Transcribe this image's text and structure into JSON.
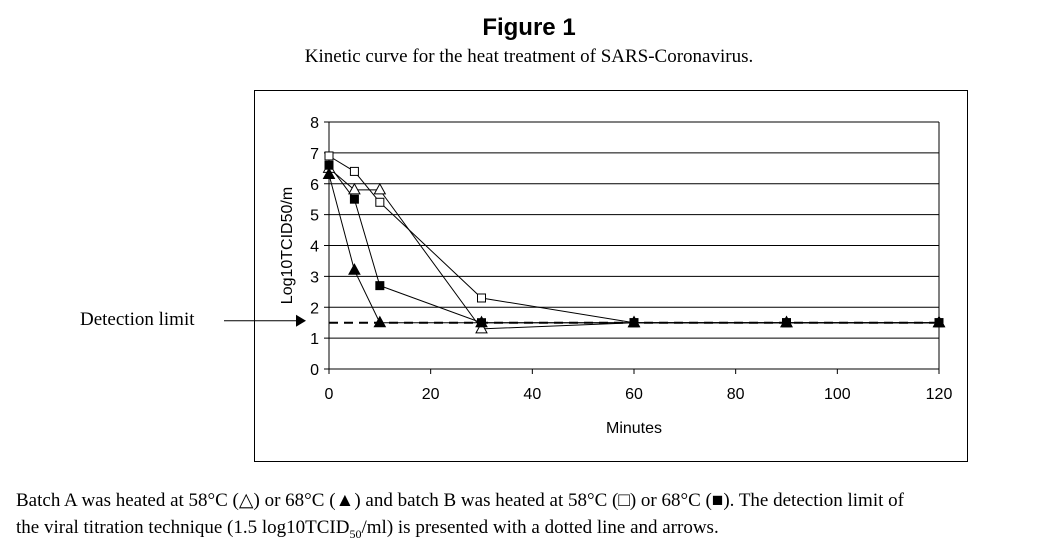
{
  "figure": {
    "title": "Figure 1",
    "subtitle": "Kinetic curve for the heat treatment of SARS-Coronavirus.",
    "detection_label": "Detection limit"
  },
  "caption": {
    "line1_a": "Batch A was heated at 58°C (",
    "line1_b": ") or 68°C (",
    "line1_c": ") and batch B was heated at 58°C (",
    "line1_d": ") or 68°C (",
    "line1_e": "). The detection limit of",
    "line2_a": "the viral titration technique (1.5 log10TCID",
    "line2_sub": "50",
    "line2_b": "/ml) is presented with a dotted line and arrows."
  },
  "chart_data": {
    "type": "line",
    "xlabel": "Minutes",
    "ylabel": "Log10TCID50/m",
    "xlim": [
      0,
      120
    ],
    "ylim": [
      0,
      8
    ],
    "xticks": [
      0,
      20,
      40,
      60,
      80,
      100,
      120
    ],
    "yticks": [
      0,
      1,
      2,
      3,
      4,
      5,
      6,
      7,
      8
    ],
    "grid": "horizontal",
    "detection_limit": 1.5,
    "series": [
      {
        "marker": "open-triangle",
        "points": [
          [
            0,
            6.5
          ],
          [
            5,
            5.8
          ],
          [
            10,
            5.8
          ],
          [
            30,
            1.3
          ],
          [
            60,
            1.5
          ],
          [
            90,
            1.5
          ],
          [
            120,
            1.5
          ]
        ]
      },
      {
        "marker": "filled-triangle",
        "points": [
          [
            0,
            6.3
          ],
          [
            5,
            3.2
          ],
          [
            10,
            1.5
          ],
          [
            30,
            1.5
          ],
          [
            60,
            1.5
          ],
          [
            90,
            1.5
          ],
          [
            120,
            1.5
          ]
        ]
      },
      {
        "marker": "open-square",
        "points": [
          [
            0,
            6.9
          ],
          [
            5,
            6.4
          ],
          [
            10,
            5.4
          ],
          [
            30,
            2.3
          ],
          [
            60,
            1.5
          ],
          [
            90,
            1.5
          ],
          [
            120,
            1.5
          ]
        ]
      },
      {
        "marker": "filled-square",
        "points": [
          [
            0,
            6.6
          ],
          [
            5,
            5.5
          ],
          [
            10,
            2.7
          ],
          [
            30,
            1.5
          ],
          [
            60,
            1.5
          ],
          [
            90,
            1.5
          ],
          [
            120,
            1.5
          ]
        ]
      }
    ]
  }
}
